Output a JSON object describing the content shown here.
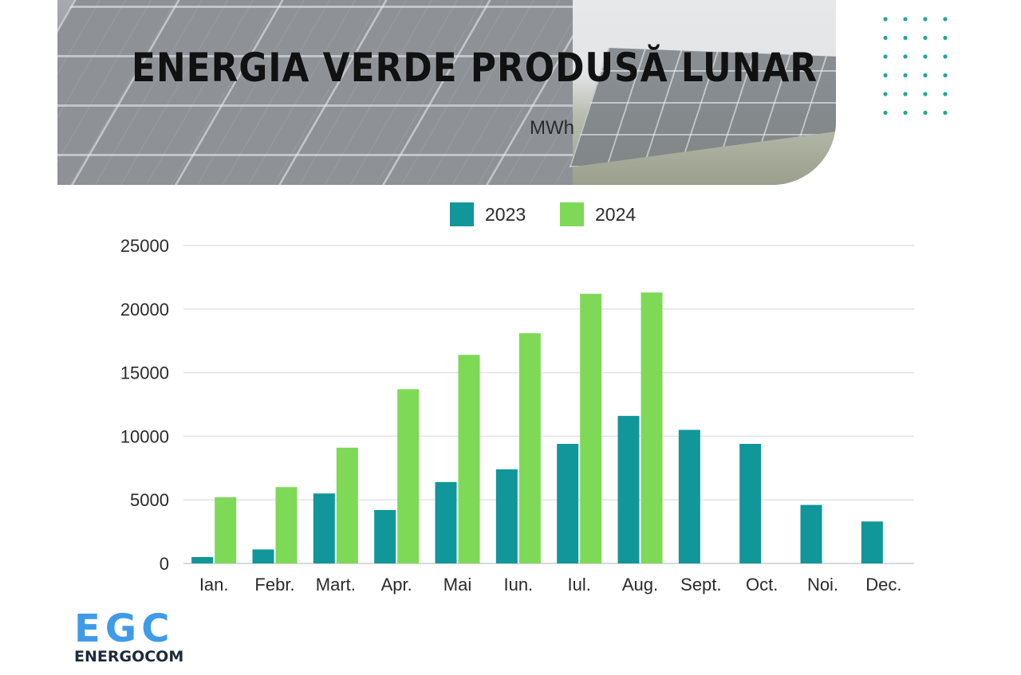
{
  "header": {
    "title": "ENERGIA VERDE PRODUSĂ LUNAR",
    "unit": "MWh"
  },
  "colors": {
    "series_2023": "#11969a",
    "series_2024": "#7ed957",
    "grid": "#e1e3e6",
    "axis_text": "#2a2a2a",
    "dots": "#23a79a",
    "logo_accent": "#3f9bea"
  },
  "logo": {
    "mark": "EGC",
    "name": "ENERGOCOM"
  },
  "chart_data": {
    "type": "bar",
    "title": "ENERGIA VERDE PRODUSĂ LUNAR",
    "subtitle": "MWh",
    "categories": [
      "Ian.",
      "Febr.",
      "Mart.",
      "Apr.",
      "Mai",
      "Iun.",
      "Iul.",
      "Aug.",
      "Sept.",
      "Oct.",
      "Noi.",
      "Dec."
    ],
    "series": [
      {
        "name": "2023",
        "color": "#11969a",
        "values": [
          500,
          1100,
          5500,
          4200,
          6400,
          7400,
          9400,
          11600,
          10500,
          9400,
          4600,
          3300
        ]
      },
      {
        "name": "2024",
        "color": "#7ed957",
        "values": [
          5200,
          6000,
          9100,
          13700,
          16400,
          18100,
          21200,
          21300,
          null,
          null,
          null,
          null
        ]
      }
    ],
    "ylim": [
      0,
      25000
    ],
    "yticks": [
      0,
      5000,
      10000,
      15000,
      20000,
      25000
    ],
    "grid": true,
    "legend": "top-center"
  }
}
